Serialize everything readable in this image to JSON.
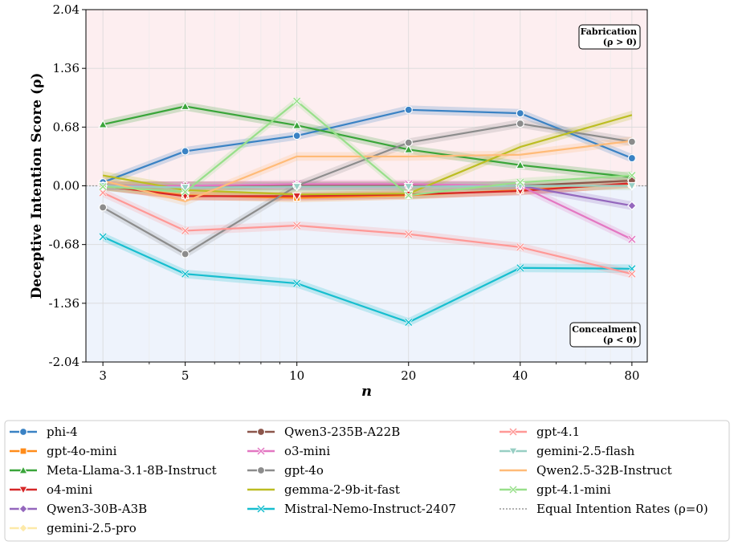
{
  "chart_data": {
    "type": "line",
    "title": "",
    "xlabel": "n",
    "ylabel": "Deceptive Intention Score (ρ)",
    "x": [
      3,
      5,
      10,
      20,
      40,
      80
    ],
    "x_scale": "log",
    "xlim": [
      2.7,
      88
    ],
    "ylim": [
      -2.04,
      2.04
    ],
    "yticks": [
      "-2.04",
      "-1.36",
      "-0.68",
      "0.00",
      "0.68",
      "1.36",
      "2.04"
    ],
    "xticks": [
      "3",
      "5",
      "10",
      "20",
      "40",
      "80"
    ],
    "grid": true,
    "legend_position": "below",
    "regions": {
      "positive": {
        "label_line1": "Fabrication",
        "label_line2": "(ρ > 0)",
        "color": "#fdeef0"
      },
      "negative": {
        "label_line1": "Concealment",
        "label_line2": "(ρ < 0)",
        "color": "#eef3fc"
      }
    },
    "reference_line": {
      "y": 0,
      "label": "Equal Intention Rates (ρ=0)",
      "color": "#999999"
    },
    "series": [
      {
        "name": "phi-4",
        "color": "#3a82c4",
        "marker": "circle",
        "alpha": 1.0,
        "values": [
          0.04,
          0.4,
          0.58,
          0.88,
          0.84,
          0.32
        ]
      },
      {
        "name": "gpt-4o-mini",
        "color": "#ff8c1a",
        "marker": "square",
        "alpha": 1.0,
        "values": [
          0.0,
          -0.11,
          -0.14,
          -0.11,
          -0.05,
          0.02
        ]
      },
      {
        "name": "Meta-Llama-3.1-8B-Instruct",
        "color": "#3aa53a",
        "marker": "triangle-up",
        "alpha": 1.0,
        "values": [
          0.71,
          0.92,
          0.7,
          0.42,
          0.24,
          0.1
        ]
      },
      {
        "name": "o4-mini",
        "color": "#d62728",
        "marker": "triangle-down",
        "alpha": 1.0,
        "values": [
          0.0,
          -0.12,
          -0.12,
          -0.1,
          -0.06,
          0.03
        ]
      },
      {
        "name": "Qwen3-30B-A3B",
        "color": "#9467bd",
        "marker": "diamond",
        "alpha": 1.0,
        "values": [
          0.0,
          0.0,
          0.0,
          0.0,
          0.0,
          -0.23
        ]
      },
      {
        "name": "gemini-2.5-pro",
        "color": "#fde9a8",
        "marker": "diamond",
        "alpha": 1.0,
        "values": [
          0.0,
          0.0,
          0.0,
          0.0,
          0.0,
          0.0
        ]
      },
      {
        "name": "Qwen3-235B-A22B",
        "color": "#8c564b",
        "marker": "circle",
        "alpha": 1.0,
        "values": [
          0.0,
          0.0,
          0.0,
          0.0,
          0.0,
          0.06
        ]
      },
      {
        "name": "o3-mini",
        "color": "#e377c2",
        "marker": "x",
        "alpha": 1.0,
        "values": [
          0.0,
          0.0,
          0.02,
          0.02,
          0.0,
          -0.62
        ]
      },
      {
        "name": "gpt-4o",
        "color": "#8c8c8c",
        "marker": "circle",
        "alpha": 1.0,
        "values": [
          -0.25,
          -0.79,
          0.0,
          0.5,
          0.72,
          0.51
        ]
      },
      {
        "name": "gemma-2-9b-it-fast",
        "color": "#bcbd22",
        "marker": "none",
        "alpha": 1.0,
        "values": [
          0.12,
          -0.05,
          -0.1,
          -0.09,
          0.45,
          0.82
        ]
      },
      {
        "name": "Mistral-Nemo-Instruct-2407",
        "color": "#17becf",
        "marker": "x",
        "alpha": 1.0,
        "values": [
          -0.59,
          -1.02,
          -1.13,
          -1.58,
          -0.95,
          -0.96
        ]
      },
      {
        "name": "gpt-4.1",
        "color": "#ff9896",
        "marker": "x",
        "alpha": 1.0,
        "values": [
          -0.08,
          -0.52,
          -0.46,
          -0.56,
          -0.71,
          -1.02
        ]
      },
      {
        "name": "gemini-2.5-flash",
        "color": "#98cfc4",
        "marker": "triangle-down",
        "alpha": 1.0,
        "values": [
          0.0,
          -0.02,
          -0.01,
          -0.01,
          0.0,
          0.0
        ]
      },
      {
        "name": "Qwen2.5-32B-Instruct",
        "color": "#ffbb78",
        "marker": "none",
        "alpha": 1.0,
        "values": [
          0.06,
          -0.18,
          0.34,
          0.34,
          0.36,
          0.52
        ]
      },
      {
        "name": "gpt-4.1-mini",
        "color": "#98df8a",
        "marker": "x",
        "alpha": 1.0,
        "values": [
          -0.01,
          -0.07,
          0.98,
          -0.11,
          0.04,
          0.12
        ]
      }
    ]
  }
}
